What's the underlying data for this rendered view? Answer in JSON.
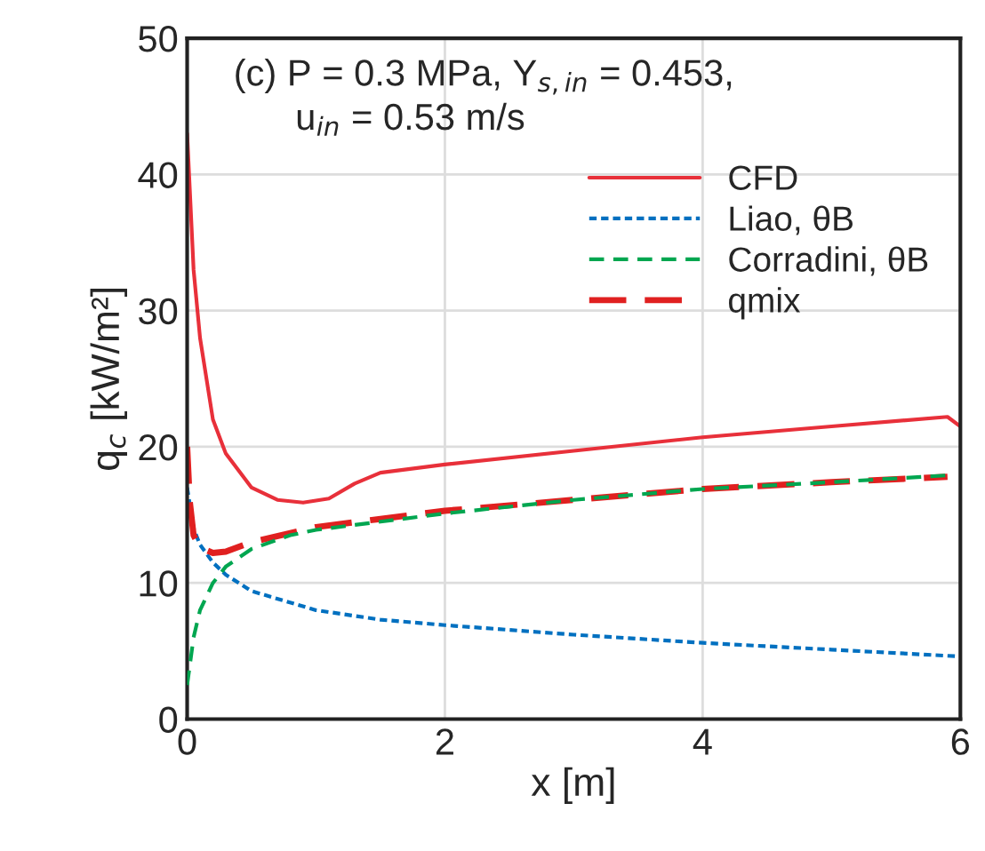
{
  "chart_data": {
    "type": "line",
    "xlabel": "x [m]",
    "ylabel": "q$_{c}$ [kW/m²]",
    "annotations": [
      "(c) P = 0.3 MPa, Y$_{s,in}$ = 0.453,\n      u$_{in}$ = 0.53 m/s"
    ],
    "xlim": [
      0,
      6
    ],
    "xticks": [
      0,
      2,
      4,
      6
    ],
    "ylim": [
      0,
      50
    ],
    "yticks": [
      0,
      10,
      20,
      30,
      40,
      50
    ],
    "grid": true,
    "legend": "top right",
    "series": [
      {
        "name": "CFD",
        "color": "#e8303a",
        "line_style": "solid",
        "x": [
          0,
          0.05,
          0.1,
          0.2,
          0.3,
          0.5,
          0.7,
          0.9,
          1.1,
          1.3,
          1.5,
          2,
          3,
          4,
          5,
          5.9,
          6
        ],
        "values": [
          43,
          33,
          28,
          22,
          19.5,
          17,
          16.1,
          15.9,
          16.2,
          17.3,
          18.1,
          18.7,
          19.7,
          20.7,
          21.5,
          22.2,
          21.5
        ]
      },
      {
        "name": "Liao, θB",
        "color": "#0070c0",
        "line_style": "dotted",
        "x": [
          0,
          0.05,
          0.1,
          0.2,
          0.3,
          0.5,
          1,
          1.5,
          2,
          3,
          4,
          5,
          6
        ],
        "values": [
          17,
          14,
          12.8,
          11.5,
          10.6,
          9.4,
          8,
          7.3,
          6.9,
          6.2,
          5.6,
          5.1,
          4.6
        ]
      },
      {
        "name": "Corradini, θB",
        "color": "#00a650",
        "line_style": "dashed",
        "x": [
          0,
          0.05,
          0.1,
          0.2,
          0.3,
          0.5,
          0.8,
          1,
          1.5,
          2,
          3,
          4,
          5,
          5.9
        ],
        "values": [
          2.5,
          6,
          8,
          10,
          11.2,
          12.5,
          13.5,
          13.9,
          14.5,
          15.1,
          16.1,
          16.9,
          17.4,
          17.9
        ]
      },
      {
        "name": "qmix",
        "color": "#e02020",
        "line_style": "dashed",
        "x": [
          0,
          0.02,
          0.05,
          0.1,
          0.2,
          0.3,
          0.5,
          1,
          1.5,
          2,
          3,
          4,
          5,
          5.9
        ],
        "values": [
          20,
          16,
          13.5,
          12.6,
          12.2,
          12.3,
          13,
          14.1,
          14.7,
          15.3,
          16.1,
          16.9,
          17.4,
          17.8
        ]
      }
    ]
  }
}
